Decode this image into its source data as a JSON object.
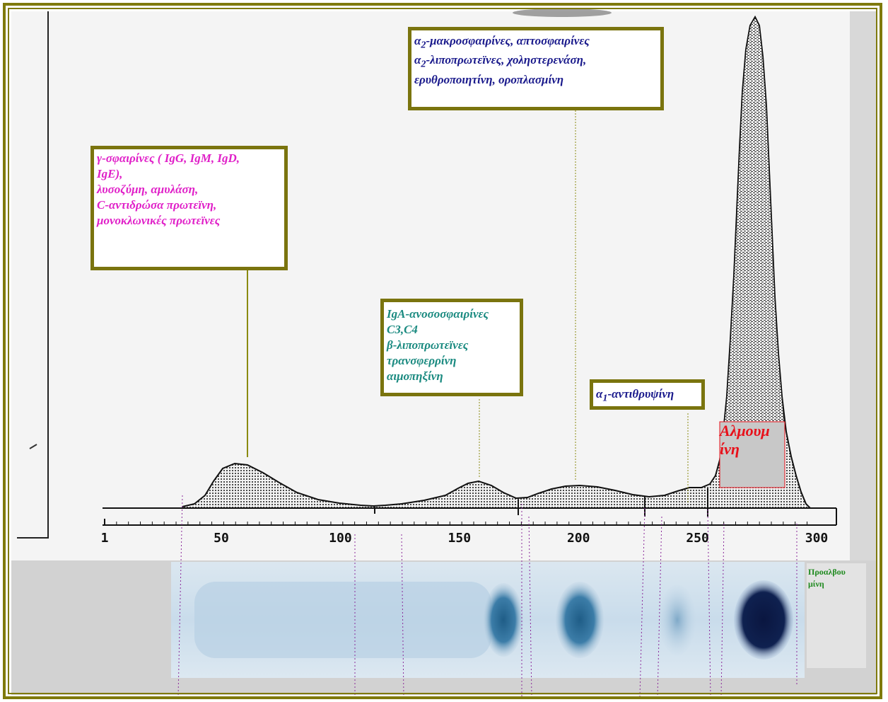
{
  "labels": {
    "gamma_lines": [
      "γ-σφαιρίνες ( IgG, IgM, IgD,",
      "IgE),",
      "λυσοζύμη, αμυλάση,",
      "C-αντιδρώσα πρωτεϊνη,",
      "μονοκλωνικές πρωτεϊνες"
    ],
    "alpha2_line1": "-μακροσφαιρίνες, απτοσφαιρίνες",
    "alpha2_line2": "-λιποπρωτεϊνες, χοληστερενάση,",
    "alpha2_line3": "ερυθροποιητίνη, οροπλασμίνη",
    "alpha_symbol": "α",
    "alpha2_sub": "2",
    "beta_lines": [
      "IgA-ανοσοσφαιρίνες",
      "C3,C4",
      "β-λιποπρωτεϊνες",
      "τρανσφερρίνη",
      "αιμοπηξίνη"
    ],
    "alpha1_sub": "1",
    "alpha1_text": "-αντιθρυψίνη",
    "albumin": "Αλμουμίνη",
    "albumin_l1": "Αλμουμ",
    "albumin_l2": "ίνη",
    "prealbumin_l1": "Προαλβου",
    "prealbumin_l2": "μίνη"
  },
  "axis": {
    "ticks": [
      "1",
      "50",
      "100",
      "150",
      "200",
      "250",
      "300"
    ]
  },
  "colors": {
    "frame": "#7f7a0c",
    "gamma_text": "#e020c8",
    "beta_text": "#1a8a80",
    "alpha_text": "#1a1a8c",
    "albumin_text": "#e8101a",
    "prealbumin_text": "#1f8a1f"
  }
}
